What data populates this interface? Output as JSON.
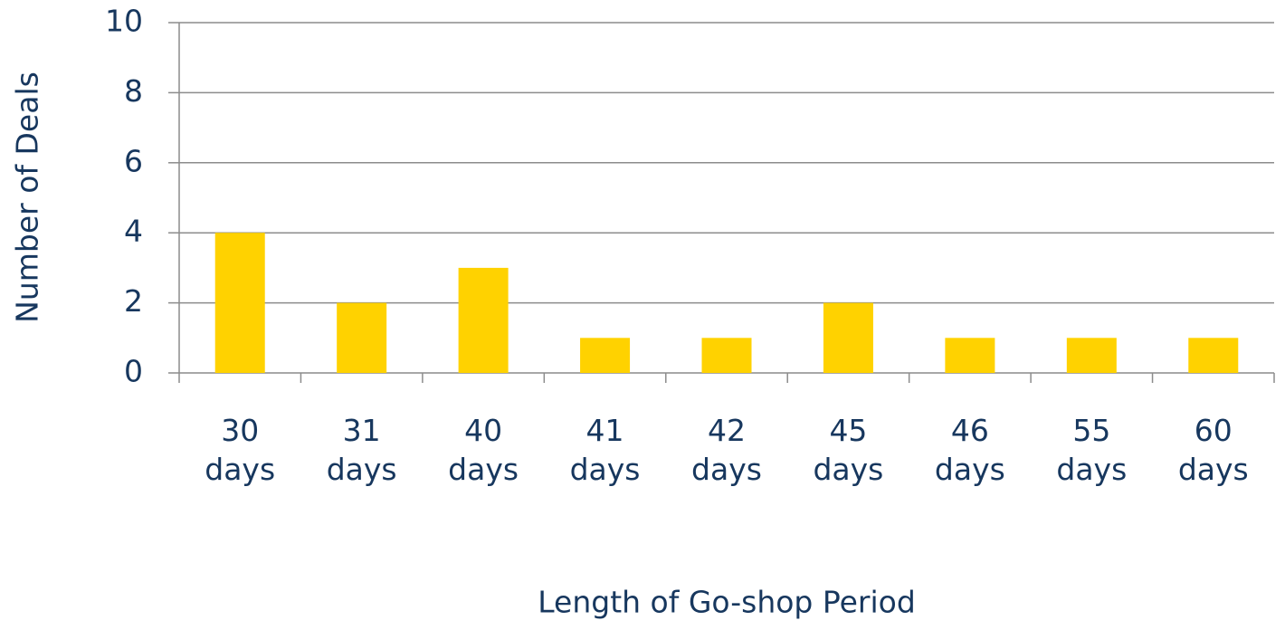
{
  "chart_data": {
    "type": "bar",
    "x_label": "Length of Go-shop Period",
    "y_label": "Number of Deals",
    "categories": [
      "30 days",
      "31 days",
      "40 days",
      "41 days",
      "42 days",
      "45 days",
      "46 days",
      "55 days",
      "60 days"
    ],
    "values": [
      4,
      2,
      3,
      1,
      1,
      2,
      1,
      1,
      1
    ],
    "color": "#ffd200",
    "ylim": [
      0,
      10
    ],
    "yticks": [
      0,
      2,
      4,
      6,
      8,
      10
    ],
    "grid": true
  }
}
